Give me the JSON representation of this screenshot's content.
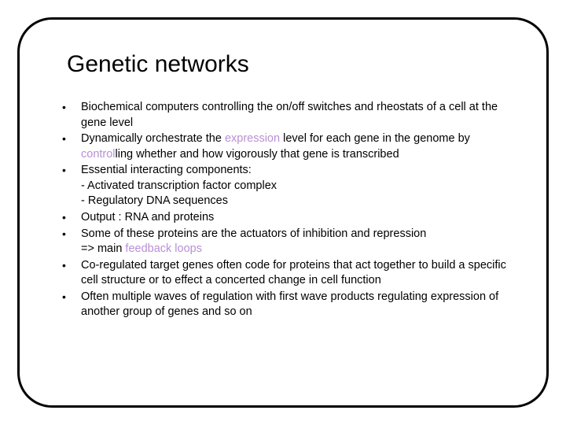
{
  "title": "Genetic networks",
  "highlight_color": "#b98fd6",
  "text_color": "#000000",
  "border_color": "#000000",
  "background_color": "#ffffff",
  "title_fontsize": 30,
  "body_fontsize": 14.5,
  "bullets": [
    {
      "parts": [
        {
          "text": "Biochemical computers controlling the on/off switches and rheostats of a cell at the gene level",
          "hl": false
        }
      ]
    },
    {
      "parts": [
        {
          "text": "Dynamically orchestrate the ",
          "hl": false
        },
        {
          "text": "expression",
          "hl": true
        },
        {
          "text": " level for each gene in the genome by ",
          "hl": false
        },
        {
          "text": "control",
          "hl": true
        },
        {
          "text": "ling whether and how vigorously that gene is transcribed",
          "hl": false
        }
      ]
    },
    {
      "parts": [
        {
          "text": "Essential interacting components:",
          "hl": false
        }
      ],
      "subs": [
        "- Activated transcription factor complex",
        "- Regulatory DNA sequences"
      ]
    },
    {
      "parts": [
        {
          "text": "Output : RNA and proteins",
          "hl": false
        }
      ]
    },
    {
      "parts": [
        {
          "text": "Some of these proteins are the actuators of inhibition and repression",
          "hl": false
        }
      ],
      "subs": [
        {
          "parts": [
            {
              "text": "=> main ",
              "hl": false
            },
            {
              "text": "feedback loops",
              "hl": true
            }
          ]
        }
      ]
    },
    {
      "parts": [
        {
          "text": "Co-regulated target genes often code for proteins that act together to build a specific cell structure or to effect a concerted change in cell function",
          "hl": false
        }
      ]
    },
    {
      "parts": [
        {
          "text": "Often multiple waves of regulation with first wave products regulating expression of another group of genes and so on",
          "hl": false
        }
      ]
    }
  ]
}
